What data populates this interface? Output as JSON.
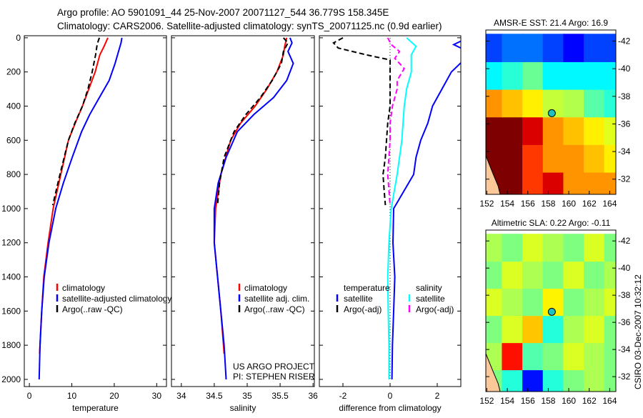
{
  "title_lines": [
    "Argo profile: AO 5901091_44 25-Nov-2007 20071127_544 36.779S 158.345E",
    "Climatology: CARS2006. Satellite-adjusted climatology: synTS_20071125.nc (0.9d earlier)"
  ],
  "side_label": "CSIRO 03-Dec-2007 10:32:12",
  "colors": {
    "climatology": "#ff0000",
    "satellite": "#0000ff",
    "argo": "#000000",
    "sal_satellite": "#00ffff",
    "sal_argo": "#ff00ff",
    "land": "#fdc898",
    "float": "#20c0c0"
  },
  "chart_data": [
    {
      "type": "line",
      "id": "temp",
      "xlabel": "temperature",
      "ylabel": "",
      "xlim": [
        -1.2,
        32.3
      ],
      "ylim": [
        2042,
        -12
      ],
      "xticks": [
        0,
        10,
        20,
        30
      ],
      "yticks": [
        0,
        200,
        400,
        600,
        800,
        1000,
        1200,
        1400,
        1600,
        1800,
        2000
      ],
      "legend": [
        "climatology",
        "satellite-adjusted climatology",
        "Argo(..raw -QC)"
      ],
      "series": [
        {
          "name": "climatology",
          "color": "#ff0000",
          "dash": false,
          "depth": [
            0,
            50,
            100,
            200,
            300,
            400,
            500,
            600,
            800,
            1000,
            1200,
            1400,
            1600,
            1800,
            1850
          ],
          "values": [
            18.5,
            17.6,
            16.6,
            15.5,
            14,
            12.5,
            10.8,
            9.2,
            7.4,
            5.6,
            4.4,
            3.4,
            2.9,
            2.5,
            2.4
          ]
        },
        {
          "name": "satellite-adjusted climatology",
          "color": "#0000ff",
          "dash": false,
          "depth": [
            0,
            30,
            80,
            150,
            250,
            350,
            450,
            550,
            700,
            850,
            1000,
            1200,
            1400,
            1600,
            1800,
            2000
          ],
          "values": [
            21.8,
            21.6,
            21,
            20.2,
            18.8,
            16.5,
            14.2,
            12.3,
            10.1,
            8,
            6.2,
            4.6,
            3.5,
            2.9,
            2.5,
            2.3
          ]
        },
        {
          "name": "Argo(..raw -QC)",
          "color": "#000000",
          "dash": true,
          "depth": [
            0,
            20,
            50,
            100,
            200,
            300,
            400,
            500,
            600,
            800,
            980
          ],
          "values": [
            16.5,
            16.2,
            15.9,
            15.6,
            14.8,
            13.8,
            12.5,
            10.7,
            9.2,
            7.2,
            5.5
          ]
        }
      ]
    },
    {
      "type": "line",
      "id": "sal",
      "xlabel": "salinity",
      "ylabel": "",
      "xlim": [
        33.85,
        36.02
      ],
      "ylim": [
        2042,
        -12
      ],
      "xticks": [
        34,
        34.5,
        35,
        35.5,
        36
      ],
      "yticks": [
        0,
        200,
        400,
        600,
        800,
        1000,
        1200,
        1400,
        1600,
        1800,
        2000
      ],
      "legend": [
        "climatology",
        "satellite adj. clim.",
        "Argo(..raw -QC)"
      ],
      "annotation": [
        "US ARGO PROJECT",
        "PI: STEPHEN RISER"
      ],
      "series": [
        {
          "name": "climatology",
          "color": "#ff0000",
          "dash": false,
          "depth": [
            0,
            50,
            100,
            200,
            300,
            400,
            500,
            600,
            800,
            1000,
            1200,
            1400,
            1600,
            1800,
            1850
          ],
          "values": [
            35.6,
            35.57,
            35.55,
            35.45,
            35.3,
            35.12,
            34.9,
            34.75,
            34.6,
            34.52,
            34.5,
            34.55,
            34.6,
            34.64,
            34.65
          ]
        },
        {
          "name": "satellite adj. clim.",
          "color": "#0000ff",
          "dash": false,
          "depth": [
            0,
            30,
            80,
            150,
            250,
            350,
            450,
            550,
            700,
            850,
            1000,
            1200,
            1400,
            1600,
            1800,
            2000
          ],
          "values": [
            35.65,
            35.68,
            35.62,
            35.7,
            35.6,
            35.4,
            35.1,
            34.85,
            34.68,
            34.56,
            34.5,
            34.5,
            34.55,
            34.6,
            34.65,
            34.68
          ]
        },
        {
          "name": "Argo(..raw -QC)",
          "color": "#000000",
          "dash": true,
          "depth": [
            0,
            30,
            80,
            150,
            250,
            350,
            450,
            550,
            700,
            850,
            980
          ],
          "values": [
            35.55,
            35.62,
            35.55,
            35.52,
            35.38,
            35.2,
            34.98,
            34.8,
            34.65,
            34.58,
            34.55
          ]
        }
      ]
    },
    {
      "type": "line",
      "id": "diff",
      "xlabel": "difference from climatology",
      "ylabel": "",
      "xlim": [
        -3,
        3
      ],
      "ylim": [
        2042,
        -12
      ],
      "xticks": [
        -2,
        0,
        2
      ],
      "yticks": [
        0,
        200,
        400,
        600,
        800,
        1000,
        1200,
        1400,
        1600,
        1800,
        2000
      ],
      "legend_temp": [
        "temperature",
        "satellite",
        "Argo(-adj)"
      ],
      "legend_sal": [
        "salinity",
        "satellite",
        "Argo(-adj)"
      ],
      "series": [
        {
          "name": "temperature satellite",
          "color": "#0000ff",
          "dash": false,
          "depth": [
            0,
            40,
            80,
            120,
            200,
            300,
            400,
            500,
            600,
            700,
            800,
            1000,
            1200,
            1400,
            1600,
            1800,
            2000
          ],
          "values": [
            3.3,
            2.7,
            3.3,
            3.2,
            2.6,
            2.2,
            1.8,
            1.6,
            1.3,
            1.1,
            1,
            0.15,
            0.12,
            0.2,
            0.15,
            0.1,
            0.08
          ]
        },
        {
          "name": "salinity satellite",
          "color": "#00ffff",
          "dash": false,
          "depth": [
            0,
            50,
            100,
            200,
            300,
            400,
            500,
            600,
            800,
            1000,
            1200,
            1400,
            1600,
            1800,
            2000
          ],
          "values": [
            0.7,
            1.1,
            0.9,
            0.9,
            0.7,
            0.6,
            0.55,
            0.5,
            0.3,
            0.05,
            -0.05,
            -0.1,
            -0.08,
            -0.05,
            -0.05
          ]
        },
        {
          "name": "temperature Argo(-adj)",
          "color": "#000000",
          "dash": true,
          "depth": [
            0,
            30,
            60,
            100,
            130,
            200,
            300,
            400,
            500,
            600,
            700,
            800,
            900,
            980
          ],
          "values": [
            -2,
            -2.4,
            -2.2,
            -1,
            0,
            0,
            0,
            0,
            -0.1,
            -0.15,
            -0.2,
            -0.3,
            -0.25,
            -0.2
          ]
        },
        {
          "name": "salinity Argo(-adj)",
          "color": "#ff00ff",
          "dash": true,
          "depth": [
            0,
            40,
            80,
            120,
            180,
            250,
            300,
            400,
            500,
            600,
            800,
            980
          ],
          "values": [
            -0.1,
            0.05,
            0.4,
            0.2,
            0.6,
            0.3,
            0.3,
            0.1,
            0,
            0,
            -0.1,
            0
          ]
        }
      ]
    },
    {
      "type": "heatmap",
      "id": "sst",
      "title": "AMSR-E SST: 21.4 Argo: 16.9",
      "xlim": [
        151.9,
        164.6
      ],
      "ylim": [
        -30.9,
        -42.8
      ],
      "xticks": [
        152,
        154,
        156,
        158,
        160,
        162,
        164
      ],
      "yticks": [
        -32,
        -34,
        -36,
        -38,
        -40,
        -42
      ],
      "lon": [
        152.5,
        154.5,
        156.5,
        158.5,
        160.5,
        162.5,
        164.5
      ],
      "lat": [
        -31.5,
        -33.5,
        -35.5,
        -37.5,
        -39.5,
        -41.5
      ],
      "clim": [
        14,
        24
      ],
      "values": [
        [
          24,
          24,
          22,
          23,
          21,
          21,
          21
        ],
        [
          24,
          24,
          22,
          21,
          21,
          20.5,
          20
        ],
        [
          24,
          24,
          23,
          21,
          20.5,
          20,
          19.5
        ],
        [
          21,
          20.5,
          20,
          19.2,
          19,
          18,
          17.5
        ],
        [
          17,
          17.5,
          18.2,
          17,
          17,
          17,
          17
        ],
        [
          15,
          15.5,
          15.5,
          15,
          14.3,
          15,
          15
        ]
      ],
      "float": {
        "lon": 158.345,
        "lat": -36.779
      }
    },
    {
      "type": "heatmap",
      "id": "sla",
      "title": "Altimetric SLA: 0.22 Argo: -0.11",
      "xlim": [
        151.9,
        164.6
      ],
      "ylim": [
        -30.9,
        -42.8
      ],
      "xticks": [
        152,
        154,
        156,
        158,
        160,
        162,
        164
      ],
      "yticks": [
        -32,
        -34,
        -36,
        -38,
        -40,
        -42
      ],
      "lon": [
        152.5,
        154.5,
        156.5,
        158.5,
        160.5,
        162.5,
        164.5
      ],
      "lat": [
        -31.5,
        -33.5,
        -35.5,
        -37.5,
        -39.5,
        -41.5
      ],
      "clim": [
        -0.5,
        0.5
      ],
      "values": [
        [
          0,
          -0.1,
          -0.4,
          -0.1,
          0,
          0.05,
          0
        ],
        [
          0.05,
          0.4,
          -0.05,
          0,
          0.1,
          0.05,
          0
        ],
        [
          0,
          0.1,
          0.2,
          -0.1,
          0.05,
          0.1,
          0
        ],
        [
          0.1,
          0.05,
          0,
          0.15,
          0,
          0.05,
          0.1
        ],
        [
          0,
          0.1,
          0.05,
          0,
          0.1,
          0,
          0.05
        ],
        [
          0.05,
          0,
          0.1,
          0.05,
          0,
          0.1,
          0
        ]
      ],
      "float": {
        "lon": 158.345,
        "lat": -36.779
      }
    }
  ]
}
